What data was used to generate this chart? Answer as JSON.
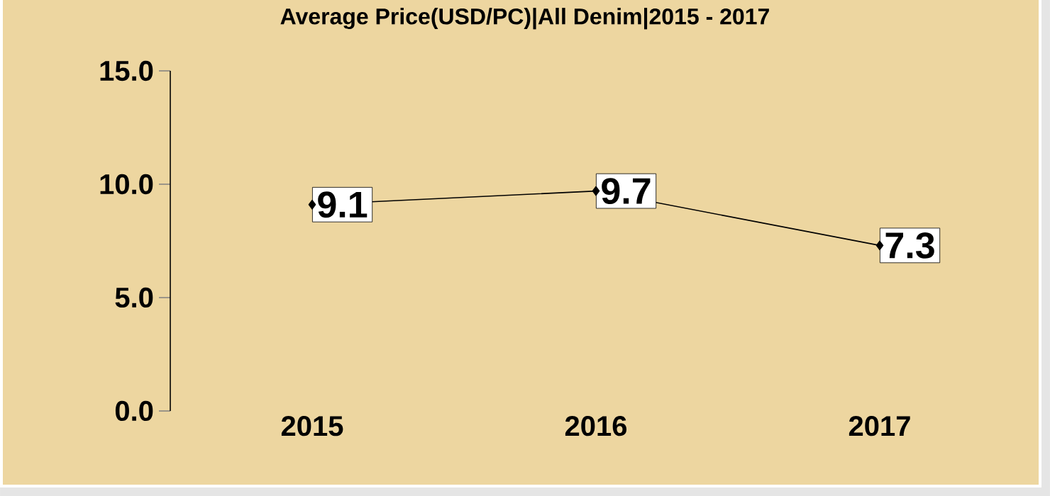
{
  "chart_data": {
    "type": "line",
    "title": "Average Price(USD/PC)|All Denim|2015 - 2017",
    "categories": [
      "2015",
      "2016",
      "2017"
    ],
    "series": [
      {
        "color": "#000000",
        "values": [
          9.1,
          9.7,
          7.3
        ]
      }
    ],
    "ylim": [
      0,
      15
    ],
    "yticks": [
      {
        "value": 0,
        "label": "0.0"
      },
      {
        "value": 5,
        "label": "5.0"
      },
      {
        "value": 10,
        "label": "10.0"
      },
      {
        "value": 15,
        "label": "15.0"
      }
    ],
    "marker": "diamond",
    "data_labels": true
  }
}
